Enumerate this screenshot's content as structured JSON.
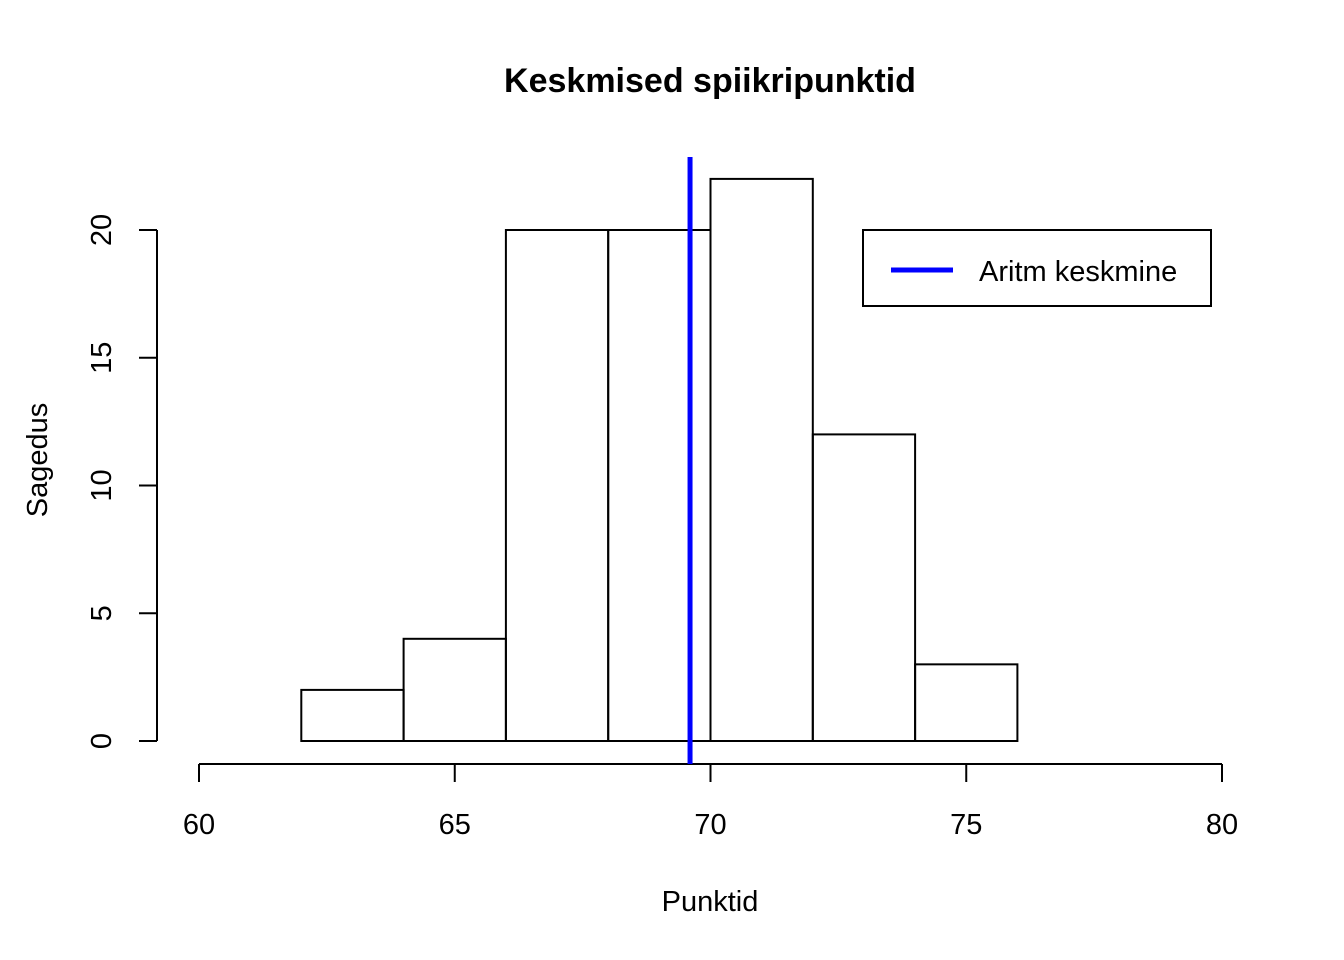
{
  "chart_data": {
    "type": "bar",
    "title": "Keskmised spiikripunktid",
    "xlabel": "Punktid",
    "ylabel": "Sagedus",
    "xlim": [
      60,
      80
    ],
    "ylim": [
      0,
      22
    ],
    "x_ticks": [
      60,
      65,
      70,
      75,
      80
    ],
    "y_ticks": [
      0,
      5,
      10,
      15,
      20
    ],
    "bins": [
      {
        "from": 62,
        "to": 64,
        "count": 2
      },
      {
        "from": 64,
        "to": 66,
        "count": 4
      },
      {
        "from": 66,
        "to": 68,
        "count": 20
      },
      {
        "from": 68,
        "to": 70,
        "count": 20
      },
      {
        "from": 70,
        "to": 72,
        "count": 22
      },
      {
        "from": 72,
        "to": 74,
        "count": 12
      },
      {
        "from": 74,
        "to": 76,
        "count": 3
      }
    ],
    "mean_line": {
      "x": 69.6,
      "color": "#0000ff",
      "label": "Aritm keskmine"
    },
    "legend": {
      "position": "top-right",
      "entries": [
        "Aritm keskmine"
      ]
    },
    "grid": false
  }
}
